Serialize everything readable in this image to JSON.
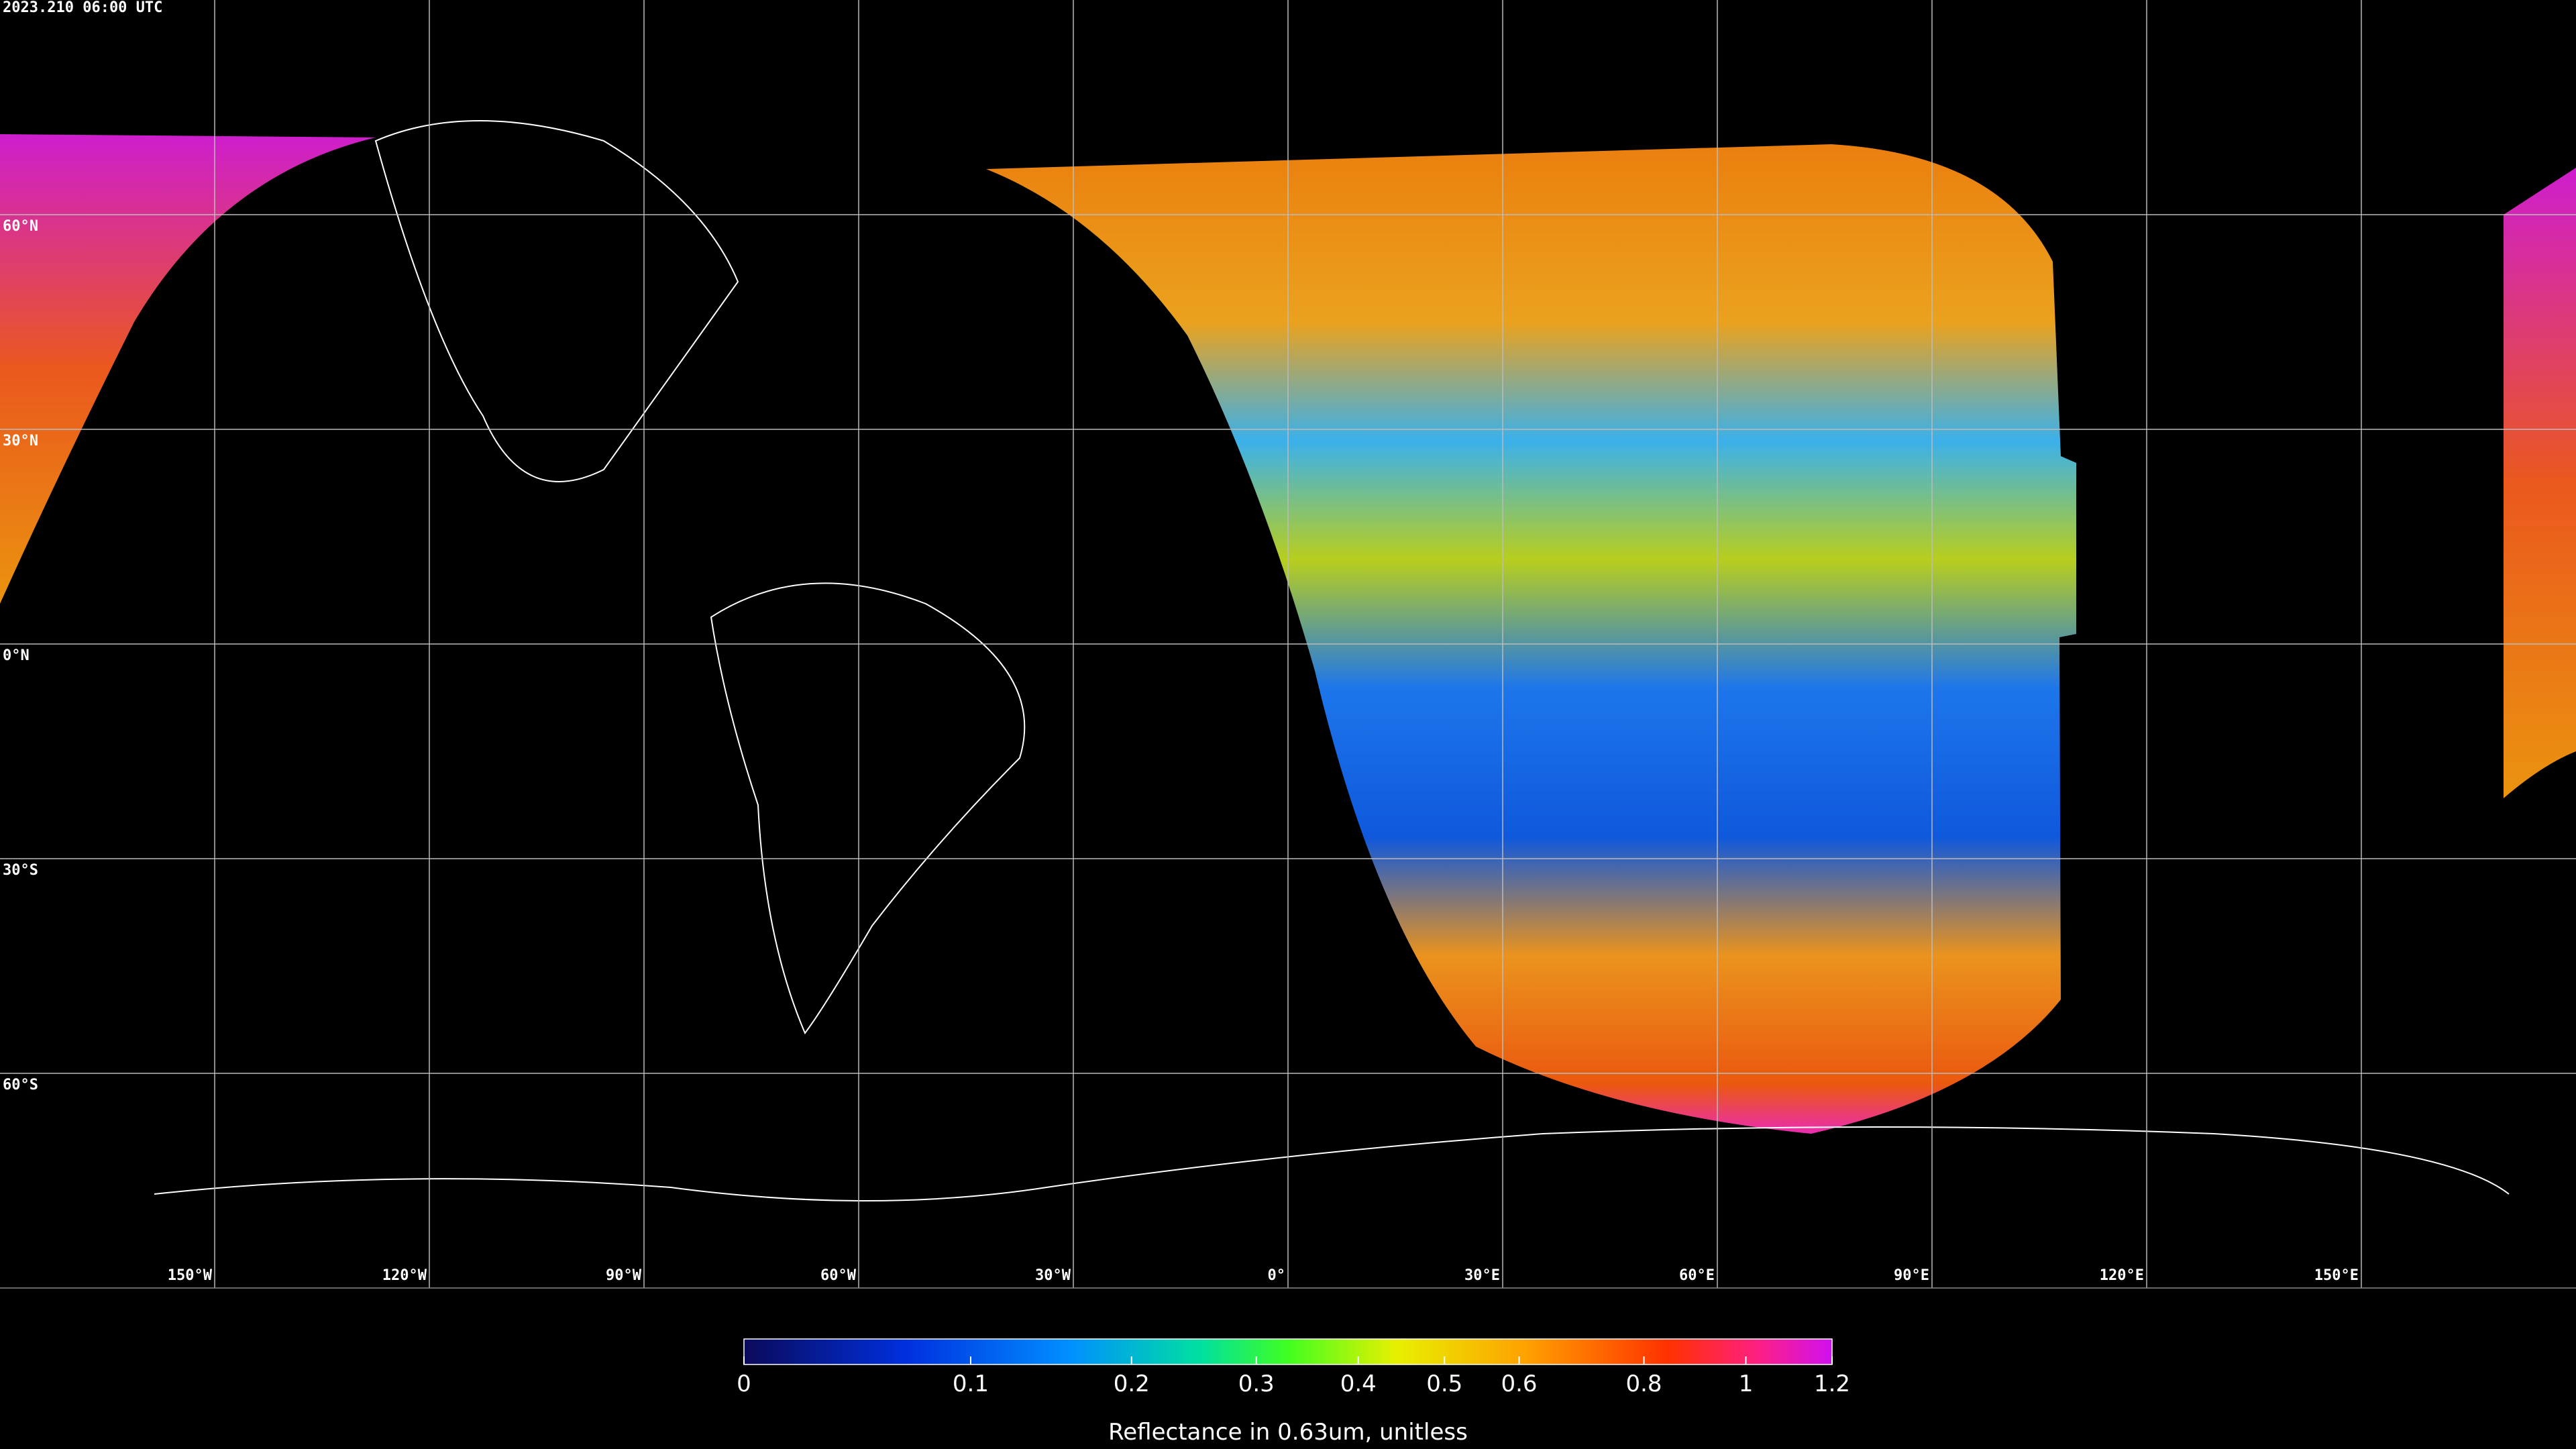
{
  "header": {
    "title": "2023.210 06:00 UTC"
  },
  "map": {
    "lat_lines": [
      {
        "value": 60,
        "label": "60°N"
      },
      {
        "value": 30,
        "label": "30°N"
      },
      {
        "value": 0,
        "label": "0°N"
      },
      {
        "value": -30,
        "label": "30°S"
      },
      {
        "value": -60,
        "label": "60°S"
      }
    ],
    "lon_lines": [
      {
        "value": -150,
        "label": "150°W"
      },
      {
        "value": -120,
        "label": "120°W"
      },
      {
        "value": -90,
        "label": "90°W"
      },
      {
        "value": -60,
        "label": "60°W"
      },
      {
        "value": -30,
        "label": "30°W"
      },
      {
        "value": 0,
        "label": "0°"
      },
      {
        "value": 30,
        "label": "30°E"
      },
      {
        "value": 60,
        "label": "60°E"
      },
      {
        "value": 90,
        "label": "90°E"
      },
      {
        "value": 120,
        "label": "120°E"
      },
      {
        "value": 150,
        "label": "150°E"
      }
    ]
  },
  "colorbar": {
    "label": "Reflectance in 0.63um, unitless",
    "lim": [
      0,
      1.2
    ],
    "ticks": [
      0,
      0.1,
      0.2,
      0.3,
      0.4,
      0.5,
      0.6,
      0.8,
      1,
      1.2
    ]
  }
}
